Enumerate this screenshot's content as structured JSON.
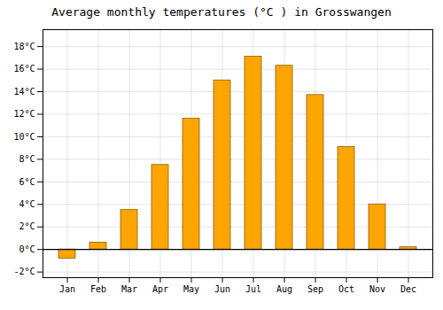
{
  "chart_data": {
    "type": "bar",
    "title": "Average monthly temperatures (°C ) in Grosswangen",
    "categories": [
      "Jan",
      "Feb",
      "Mar",
      "Apr",
      "May",
      "Jun",
      "Jul",
      "Aug",
      "Sep",
      "Oct",
      "Nov",
      "Dec"
    ],
    "values": [
      -0.8,
      0.6,
      3.5,
      7.5,
      11.6,
      15.0,
      17.1,
      16.3,
      13.7,
      9.1,
      4.0,
      0.2
    ],
    "color": "#FFA500",
    "ylim": [
      -2.5,
      19.5
    ],
    "yticks": [
      {
        "value": -2,
        "label": "-2°C"
      },
      {
        "value": 0,
        "label": "0°C"
      },
      {
        "value": 2,
        "label": "2°C"
      },
      {
        "value": 4,
        "label": "4°C"
      },
      {
        "value": 6,
        "label": "6°C"
      },
      {
        "value": 8,
        "label": "8°C"
      },
      {
        "value": 10,
        "label": "10°C"
      },
      {
        "value": 12,
        "label": "12°C"
      },
      {
        "value": 14,
        "label": "14°C"
      },
      {
        "value": 16,
        "label": "16°C"
      },
      {
        "value": 18,
        "label": "18°C"
      }
    ],
    "grid": true
  }
}
